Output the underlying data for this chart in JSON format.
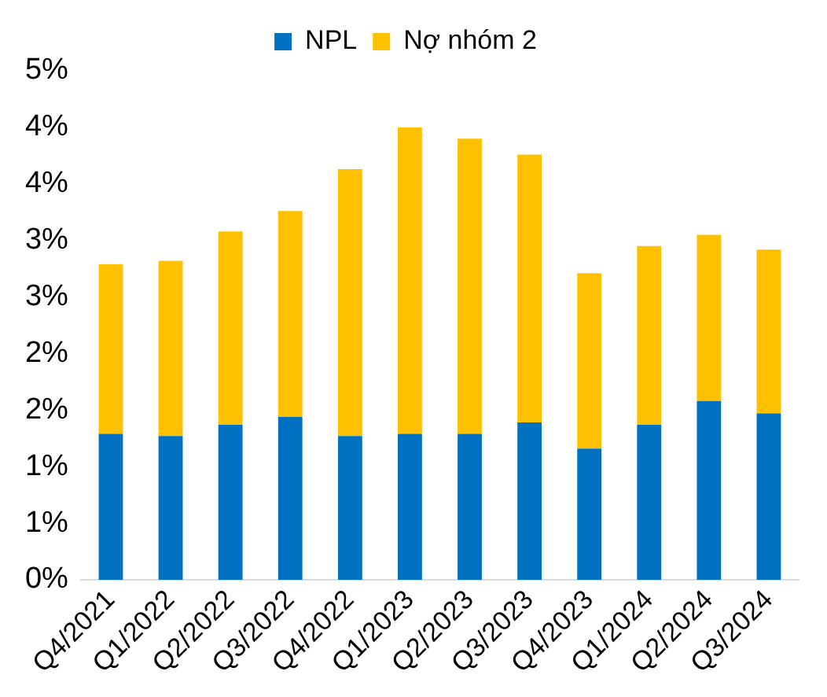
{
  "chart_data": {
    "type": "bar",
    "stacked": true,
    "legend": "top",
    "grid": false,
    "categories": [
      "Q4/2021",
      "Q1/2022",
      "Q2/2022",
      "Q3/2022",
      "Q4/2022",
      "Q1/2023",
      "Q2/2023",
      "Q3/2023",
      "Q4/2023",
      "Q1/2024",
      "Q2/2024",
      "Q3/2024"
    ],
    "series": [
      {
        "name": "NPL",
        "color": "#0070c0",
        "values": [
          1.29,
          1.27,
          1.37,
          1.44,
          1.27,
          1.29,
          1.29,
          1.39,
          1.16,
          1.37,
          1.58,
          1.47
        ]
      },
      {
        "name": "Nợ nhóm 2",
        "color": "#ffc000",
        "values": [
          1.5,
          1.55,
          1.71,
          1.82,
          2.36,
          2.71,
          2.61,
          2.37,
          1.55,
          1.58,
          1.47,
          1.45
        ]
      }
    ],
    "ylim": [
      0,
      4.5
    ],
    "yticks": [
      {
        "value": 0,
        "label": "0%"
      },
      {
        "value": 0.5,
        "label": "1%"
      },
      {
        "value": 1,
        "label": "1%"
      },
      {
        "value": 1.5,
        "label": "2%"
      },
      {
        "value": 2,
        "label": "2%"
      },
      {
        "value": 2.5,
        "label": "3%"
      },
      {
        "value": 3,
        "label": "3%"
      },
      {
        "value": 3.5,
        "label": "4%"
      },
      {
        "value": 4,
        "label": "4%"
      },
      {
        "value": 4.5,
        "label": "5%"
      }
    ]
  }
}
